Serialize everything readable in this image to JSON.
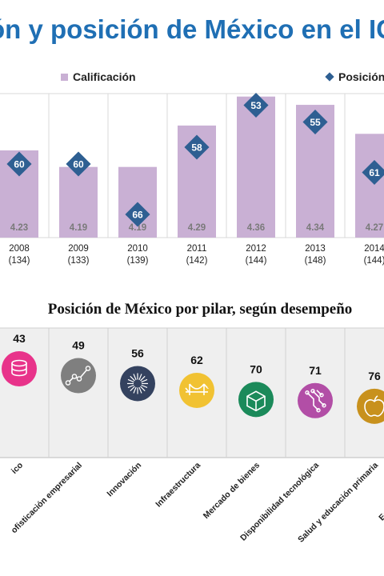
{
  "title": "ón y posición de México en el IC",
  "legend": {
    "bar_label": "Calificación",
    "marker_label": "Posición"
  },
  "colors": {
    "title": "#1f6fb4",
    "bar": "#c9b0d4",
    "marker": "#2e5f92",
    "grid": "#d9d9d9"
  },
  "pillar_title": "Posición de México por pilar,  según desempeño",
  "chart_data": [
    {
      "type": "bar",
      "title": "",
      "categories": [
        "2008",
        "2009",
        "2010",
        "2011",
        "2012",
        "2013",
        "2014"
      ],
      "subcategories": [
        "(134)",
        "(133)",
        "(139)",
        "(142)",
        "(144)",
        "(148)",
        "(144)"
      ],
      "series": [
        {
          "name": "Calificación",
          "values": [
            4.23,
            4.19,
            4.19,
            4.29,
            4.36,
            4.34,
            4.27
          ]
        },
        {
          "name": "Posición",
          "values": [
            60,
            60,
            66,
            58,
            53,
            55,
            61
          ]
        }
      ],
      "ylim": [
        4.0,
        4.4
      ]
    },
    {
      "type": "bar",
      "title": "Posición de México por pilar,  según desempeño",
      "categories": [
        "...ico",
        "...ofisticación empresarial",
        "Innovación",
        "Infraestructura",
        "Mercado de bienes",
        "Disponibilidad tecnológica",
        "Salud y educación primaria",
        "Educación superior ..."
      ],
      "values": [
        43,
        49,
        56,
        62,
        70,
        71,
        76,
        null
      ],
      "icons": [
        "coins-icon",
        "trend-line-icon",
        "burst-icon",
        "bridge-icon",
        "box-icon",
        "circuit-icon",
        "apple-icon",
        ""
      ],
      "icon_colors": [
        "#e8338a",
        "#7f7f7f",
        "#34425f",
        "#f1c232",
        "#1b8a5a",
        "#b24ea6",
        "#c8911d",
        ""
      ]
    }
  ]
}
